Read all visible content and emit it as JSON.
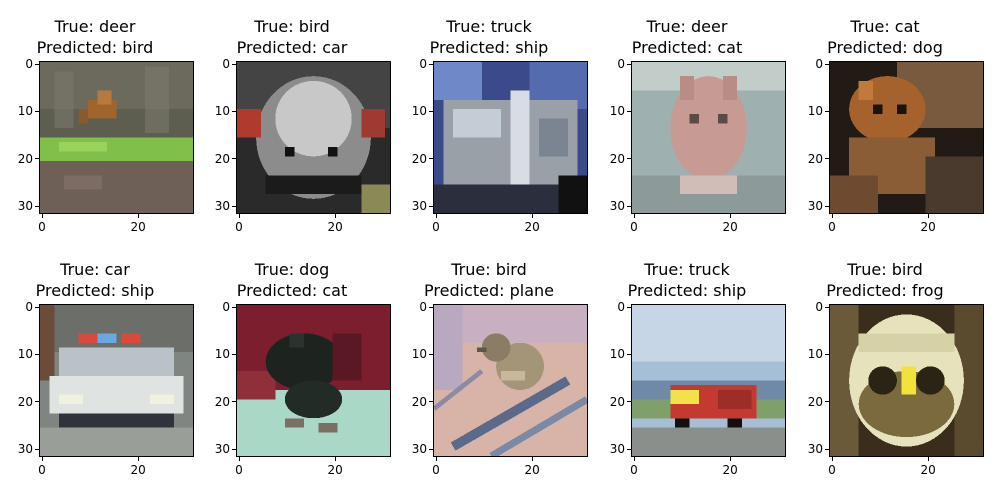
{
  "chart_data": {
    "type": "image-grid",
    "rows": 2,
    "cols": 5,
    "title_prefix_true": "True: ",
    "title_prefix_pred": "Predicted: ",
    "axis": {
      "xlim": [
        0,
        31
      ],
      "ylim": [
        31,
        0
      ],
      "x_ticks": [
        0,
        20
      ],
      "y_ticks": [
        0,
        10,
        20,
        30
      ]
    },
    "panels": [
      {
        "true": "deer",
        "predicted": "bird",
        "image": "deer-in-grass"
      },
      {
        "true": "bird",
        "predicted": "car",
        "image": "emu-head-closeup"
      },
      {
        "true": "truck",
        "predicted": "ship",
        "image": "silver-truck-front"
      },
      {
        "true": "deer",
        "predicted": "cat",
        "image": "pale-animal-face"
      },
      {
        "true": "cat",
        "predicted": "dog",
        "image": "brown-cat-dark-background"
      },
      {
        "true": "car",
        "predicted": "ship",
        "image": "police-car-front"
      },
      {
        "true": "dog",
        "predicted": "cat",
        "image": "black-dog-on-blanket"
      },
      {
        "true": "bird",
        "predicted": "plane",
        "image": "bird-on-branch"
      },
      {
        "true": "truck",
        "predicted": "ship",
        "image": "red-truck-on-road"
      },
      {
        "true": "bird",
        "predicted": "frog",
        "image": "owl-face"
      }
    ]
  },
  "colors": {
    "axis": "#000000",
    "background": "#ffffff"
  }
}
